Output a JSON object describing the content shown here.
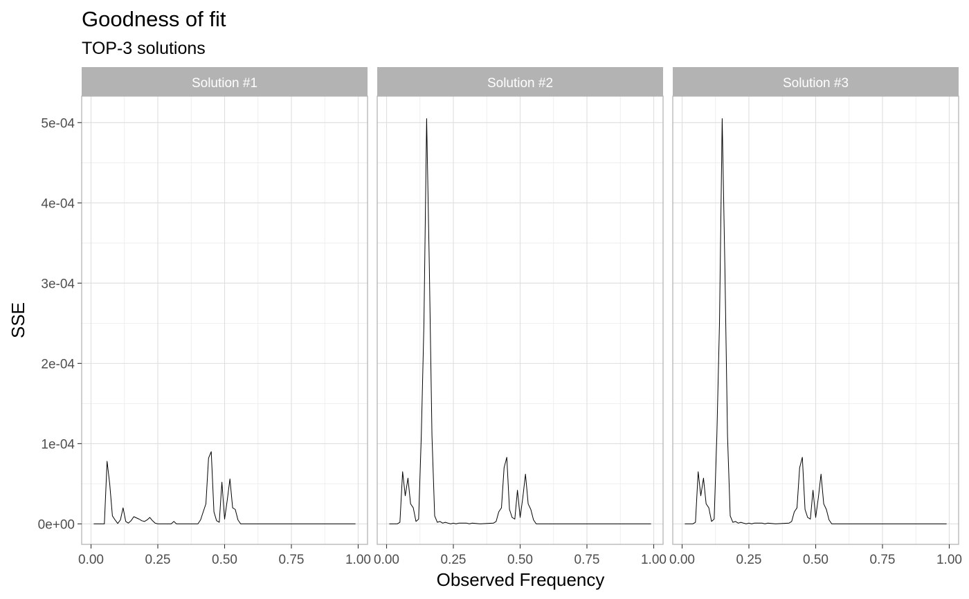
{
  "chart_data": {
    "type": "line",
    "title": "Goodness of fit",
    "subtitle": "TOP-3 solutions",
    "xlabel": "Observed Frequency",
    "ylabel": "SSE",
    "xlim": [
      -0.035,
      1.035
    ],
    "ylim": [
      -2.55e-05,
      0.000533
    ],
    "x_ticks": [
      0,
      0.25,
      0.5,
      0.75,
      1
    ],
    "x_tick_labels": [
      "0.00",
      "0.25",
      "0.50",
      "0.75",
      "1.00"
    ],
    "y_ticks": [
      0,
      0.0001,
      0.0002,
      0.0003,
      0.0004,
      0.0005
    ],
    "y_tick_labels": [
      "0e+00",
      "1e-04",
      "2e-04",
      "3e-04",
      "4e-04",
      "5e-04"
    ],
    "grid": true,
    "line_color": "#000000",
    "strip_color": "#b3b3b3",
    "panels": [
      {
        "name": "Solution #1",
        "x": [
          0.01,
          0.05,
          0.06,
          0.07,
          0.08,
          0.09,
          0.1,
          0.11,
          0.12,
          0.13,
          0.14,
          0.15,
          0.16,
          0.18,
          0.19,
          0.2,
          0.21,
          0.22,
          0.23,
          0.24,
          0.25,
          0.3,
          0.31,
          0.32,
          0.4,
          0.41,
          0.42,
          0.43,
          0.44,
          0.45,
          0.46,
          0.47,
          0.48,
          0.49,
          0.5,
          0.51,
          0.52,
          0.53,
          0.54,
          0.55,
          0.56,
          0.6,
          0.7,
          0.8,
          0.9,
          0.99
        ],
        "y": [
          0,
          0,
          7.8e-05,
          5e-05,
          1e-05,
          5e-06,
          5e-07,
          5e-06,
          2e-05,
          3e-06,
          1e-06,
          4e-06,
          9e-06,
          6e-06,
          4e-06,
          3e-06,
          5e-06,
          8e-06,
          4e-06,
          1e-06,
          0,
          0,
          3e-06,
          0,
          0,
          5e-06,
          1.5e-05,
          2.5e-05,
          8.2e-05,
          9e-05,
          1.5e-05,
          4e-06,
          2e-06,
          5.2e-05,
          6e-06,
          3e-05,
          5.6e-05,
          2e-05,
          1.8e-05,
          5e-06,
          0,
          0,
          0,
          0,
          0,
          0
        ]
      },
      {
        "name": "Solution #2",
        "x": [
          0.01,
          0.04,
          0.05,
          0.06,
          0.07,
          0.08,
          0.09,
          0.1,
          0.11,
          0.12,
          0.13,
          0.14,
          0.15,
          0.16,
          0.17,
          0.18,
          0.19,
          0.2,
          0.21,
          0.22,
          0.23,
          0.24,
          0.25,
          0.26,
          0.27,
          0.3,
          0.31,
          0.32,
          0.35,
          0.4,
          0.41,
          0.42,
          0.43,
          0.44,
          0.45,
          0.46,
          0.47,
          0.48,
          0.49,
          0.5,
          0.51,
          0.52,
          0.53,
          0.54,
          0.55,
          0.56,
          0.6,
          0.7,
          0.8,
          0.9,
          0.99
        ],
        "y": [
          0,
          0,
          2e-06,
          6.5e-05,
          3.5e-05,
          5.7e-05,
          2.5e-05,
          2e-05,
          3e-06,
          6e-06,
          0.00011,
          0.00025,
          0.000505,
          0.00032,
          0.00011,
          1e-05,
          2e-06,
          3e-06,
          1e-06,
          2e-06,
          1e-06,
          0,
          1e-06,
          0,
          1e-06,
          1e-06,
          0,
          1e-06,
          0,
          1e-06,
          3e-06,
          1.5e-05,
          2e-05,
          7e-05,
          8.3e-05,
          1.8e-05,
          8e-06,
          6e-06,
          4.2e-05,
          8e-06,
          3.3e-05,
          6.2e-05,
          2.5e-05,
          1.8e-05,
          5e-06,
          0,
          0,
          0,
          0,
          0,
          0
        ]
      },
      {
        "name": "Solution #3",
        "x": [
          0.01,
          0.04,
          0.05,
          0.06,
          0.07,
          0.08,
          0.09,
          0.1,
          0.11,
          0.12,
          0.13,
          0.14,
          0.15,
          0.16,
          0.17,
          0.18,
          0.19,
          0.2,
          0.21,
          0.22,
          0.23,
          0.24,
          0.25,
          0.26,
          0.27,
          0.3,
          0.31,
          0.32,
          0.35,
          0.4,
          0.41,
          0.42,
          0.43,
          0.44,
          0.45,
          0.46,
          0.47,
          0.48,
          0.49,
          0.5,
          0.51,
          0.52,
          0.53,
          0.54,
          0.55,
          0.56,
          0.6,
          0.7,
          0.8,
          0.9,
          0.99
        ],
        "y": [
          0,
          0,
          2e-06,
          6.5e-05,
          3.5e-05,
          5.7e-05,
          2.5e-05,
          2e-05,
          3e-06,
          6e-06,
          0.00011,
          0.00025,
          0.000505,
          0.00032,
          0.00011,
          1e-05,
          2e-06,
          3e-06,
          1e-06,
          2e-06,
          1e-06,
          0,
          1e-06,
          0,
          1e-06,
          1e-06,
          0,
          1e-06,
          0,
          1e-06,
          3e-06,
          1.5e-05,
          2e-05,
          7e-05,
          8.3e-05,
          1.8e-05,
          8e-06,
          6e-06,
          4.2e-05,
          8e-06,
          3.3e-05,
          6.2e-05,
          2.5e-05,
          1.8e-05,
          5e-06,
          0,
          0,
          0,
          0,
          0,
          0
        ]
      }
    ]
  }
}
